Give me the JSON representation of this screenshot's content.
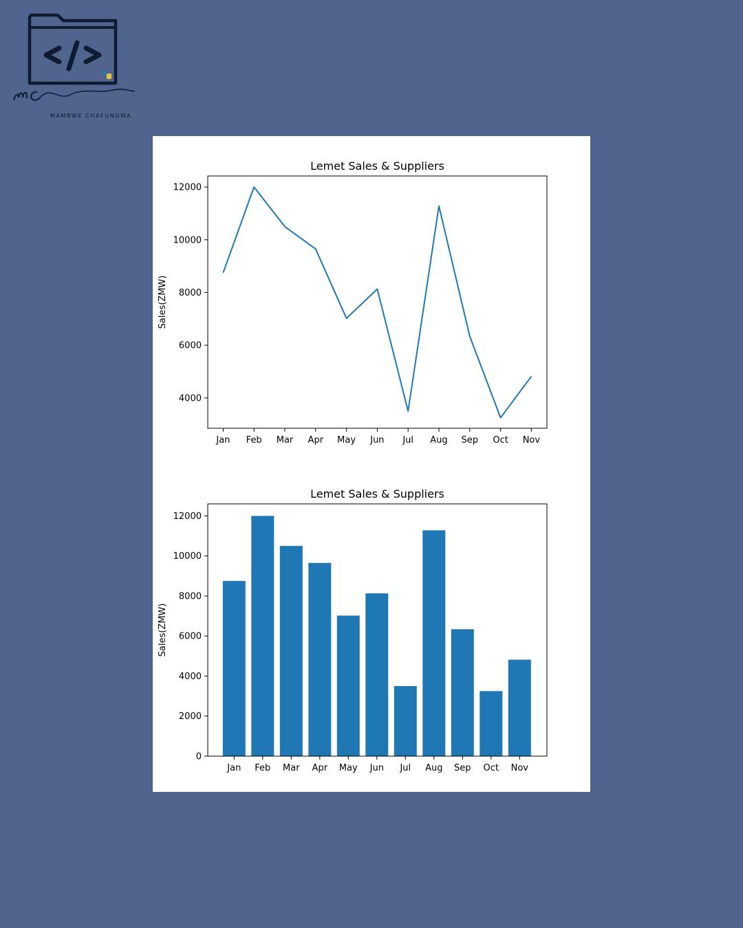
{
  "brand": {
    "name": "MAMBWE CHAFUNGWA",
    "monogram": "MC",
    "icon": "folder-code-icon",
    "colors": {
      "navy": "#0f1b33",
      "python_blue": "#3572a5",
      "python_yellow": "#f1c232"
    }
  },
  "background_color": "#50648e",
  "chart_data": [
    {
      "type": "line",
      "title": "Lemet Sales & Suppliers",
      "xlabel": "",
      "ylabel": "Sales(ZMW)",
      "categories": [
        "Jan",
        "Feb",
        "Mar",
        "Apr",
        "May",
        "Jun",
        "Jul",
        "Aug",
        "Sep",
        "Oct",
        "Nov"
      ],
      "values": [
        8750,
        12000,
        10500,
        9650,
        7020,
        8130,
        3500,
        11280,
        6340,
        3250,
        4820
      ],
      "yticks": [
        4000,
        6000,
        8000,
        10000,
        12000
      ],
      "ylim": [
        2850,
        12420
      ],
      "color": "#1f77b4",
      "grid": false
    },
    {
      "type": "bar",
      "title": "Lemet Sales & Suppliers",
      "xlabel": "",
      "ylabel": "Sales(ZMW)",
      "categories": [
        "Jan",
        "Feb",
        "Mar",
        "Apr",
        "May",
        "Jun",
        "Jul",
        "Aug",
        "Sep",
        "Oct",
        "Nov"
      ],
      "values": [
        8750,
        12000,
        10500,
        9650,
        7020,
        8130,
        3500,
        11280,
        6340,
        3250,
        4820
      ],
      "yticks": [
        0,
        2000,
        4000,
        6000,
        8000,
        10000,
        12000
      ],
      "ylim": [
        0,
        12600
      ],
      "color": "#1f77b4",
      "grid": false
    }
  ]
}
